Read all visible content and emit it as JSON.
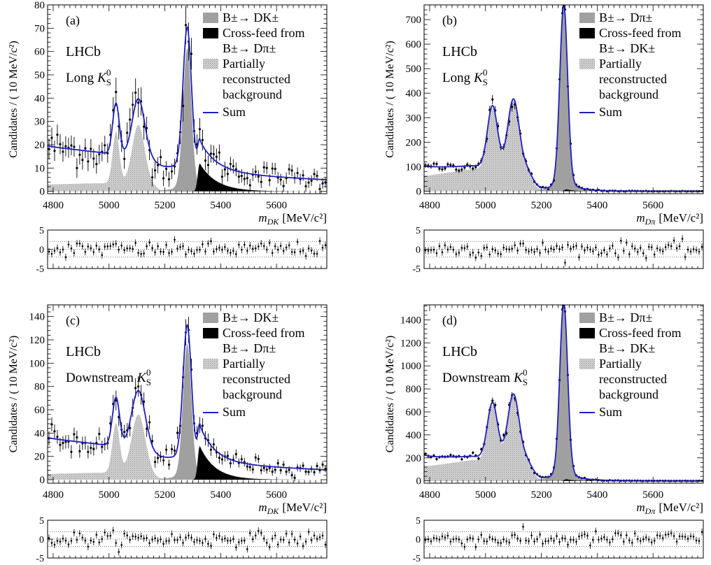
{
  "chart_data": [
    {
      "type": "line",
      "panel_label": "(a)",
      "experiment": "LHCb",
      "sample": "Long",
      "ylabel": "Candidates / ( 10 MeV/c²)",
      "xlabel_var": "m",
      "xlabel_sub": "DK",
      "xlabel_unit": "[MeV/c²]",
      "xlim": [
        4780,
        5780
      ],
      "ylim": [
        -1,
        80
      ],
      "xticks": [
        4800,
        5000,
        5200,
        5400,
        5600
      ],
      "yticks": [
        0,
        10,
        20,
        30,
        40,
        50,
        60,
        70,
        80
      ],
      "legend": [
        {
          "label": "B±→ DK±",
          "kind": "gray"
        },
        {
          "label": "Cross-feed from",
          "label2": "B±→ Dπ±",
          "kind": "black"
        },
        {
          "label": "Partially",
          "label2": "reconstructed",
          "label3": "background",
          "kind": "hatch"
        },
        {
          "label": "Sum",
          "kind": "line"
        }
      ],
      "components": {
        "signal": {
          "mu": 5280,
          "sigma": 15,
          "height": 58
        },
        "crossfeed": {
          "peak_x": 5325,
          "height": 12,
          "rise": 10,
          "decay": 60
        },
        "partial_bg": {
          "level": 3.5,
          "peaks": [
            [
              5025,
              22,
              12
            ],
            [
              5105,
              25,
              22
            ]
          ],
          "low_level_x": 4800,
          "low_level_y": 3.0
        },
        "combinatorial": {
          "a": 16.5,
          "slope": 0.0012
        },
        "sum_color": "#1f1fbf"
      },
      "residuals": {
        "ylim": [
          -5,
          5
        ],
        "yticks": [
          -5,
          0,
          5
        ],
        "bands": [
          -2,
          2
        ]
      }
    },
    {
      "type": "line",
      "panel_label": "(b)",
      "experiment": "LHCb",
      "sample": "Long",
      "ylabel": "Candidates / ( 10 MeV/c²)",
      "xlabel_var": "m",
      "xlabel_sub": "Dπ",
      "xlabel_unit": "[MeV/c²]",
      "xlim": [
        4780,
        5780
      ],
      "ylim": [
        -10,
        760
      ],
      "xticks": [
        4800,
        5000,
        5200,
        5400,
        5600
      ],
      "yticks": [
        0,
        100,
        200,
        300,
        400,
        500,
        600,
        700
      ],
      "legend": [
        {
          "label": "B±→ Dπ±",
          "kind": "gray"
        },
        {
          "label": "Cross-feed from",
          "label2": "B±→ DK±",
          "kind": "black"
        },
        {
          "label": "Partially",
          "label2": "reconstructed",
          "label3": "background",
          "kind": "hatch"
        },
        {
          "label": "Sum",
          "kind": "line"
        }
      ],
      "components": {
        "signal": {
          "mu": 5280,
          "sigma": 14,
          "height": 715
        },
        "crossfeed": {
          "peak_x": 5290,
          "height": 8,
          "rise": 10,
          "decay": 25
        },
        "partial_bg": {
          "level": 90,
          "peaks": [
            [
              5025,
              250,
              18
            ],
            [
              5100,
              280,
              20
            ]
          ],
          "low_level_x": 4800,
          "low_level_y": 65
        },
        "combinatorial": {
          "a": 40,
          "slope": 0.006
        },
        "sum_color": "#1f1fbf"
      },
      "residuals": {
        "ylim": [
          -5,
          5
        ],
        "yticks": [
          -5,
          0,
          5
        ],
        "bands": [
          -2,
          2
        ]
      }
    },
    {
      "type": "line",
      "panel_label": "(c)",
      "experiment": "LHCb",
      "sample": "Downstream",
      "ylabel": "Candidates / ( 10 MeV/c²)",
      "xlabel_var": "m",
      "xlabel_sub": "DK",
      "xlabel_unit": "[MeV/c²]",
      "xlim": [
        4780,
        5780
      ],
      "ylim": [
        -3,
        150
      ],
      "xticks": [
        4800,
        5000,
        5200,
        5400,
        5600
      ],
      "yticks": [
        0,
        20,
        40,
        60,
        80,
        100,
        120,
        140
      ],
      "legend": [
        {
          "label": "B±→ DK±",
          "kind": "gray"
        },
        {
          "label": "Cross-feed from",
          "label2": "B±→ Dπ±",
          "kind": "black"
        },
        {
          "label": "Partially",
          "label2": "reconstructed",
          "label3": "background",
          "kind": "hatch"
        },
        {
          "label": "Sum",
          "kind": "line"
        }
      ],
      "components": {
        "signal": {
          "mu": 5280,
          "sigma": 15,
          "height": 110
        },
        "crossfeed": {
          "peak_x": 5325,
          "height": 29,
          "rise": 10,
          "decay": 55
        },
        "partial_bg": {
          "level": 6,
          "peaks": [
            [
              5025,
              42,
              13
            ],
            [
              5105,
              50,
              24
            ]
          ],
          "low_level_x": 4800,
          "low_level_y": 5
        },
        "combinatorial": {
          "a": 31,
          "slope": 0.0013
        },
        "sum_color": "#1f1fbf"
      },
      "residuals": {
        "ylim": [
          -5,
          5
        ],
        "yticks": [
          -5,
          0,
          5
        ],
        "bands": [
          -2,
          2
        ]
      }
    },
    {
      "type": "line",
      "panel_label": "(d)",
      "experiment": "LHCb",
      "sample": "Downstream",
      "ylabel": "Candidates / ( 10 MeV/c²)",
      "xlabel_var": "m",
      "xlabel_sub": "Dπ",
      "xlabel_unit": "[MeV/c²]",
      "xlim": [
        4780,
        5780
      ],
      "ylim": [
        -20,
        1530
      ],
      "xticks": [
        4800,
        5000,
        5200,
        5400,
        5600
      ],
      "yticks": [
        0,
        200,
        400,
        600,
        800,
        1000,
        1200,
        1400
      ],
      "legend": [
        {
          "label": "B±→ Dπ±",
          "kind": "gray"
        },
        {
          "label": "Cross-feed from",
          "label2": "B±→ DK±",
          "kind": "black"
        },
        {
          "label": "Partially",
          "label2": "reconstructed",
          "label3": "background",
          "kind": "hatch"
        },
        {
          "label": "Sum",
          "kind": "line"
        }
      ],
      "components": {
        "signal": {
          "mu": 5280,
          "sigma": 14,
          "height": 1460
        },
        "crossfeed": {
          "peak_x": 5290,
          "height": 15,
          "rise": 10,
          "decay": 25
        },
        "partial_bg": {
          "level": 180,
          "peaks": [
            [
              5025,
              480,
              18
            ],
            [
              5100,
              560,
              20
            ]
          ],
          "low_level_x": 4800,
          "low_level_y": 130
        },
        "combinatorial": {
          "a": 95,
          "slope": 0.006
        },
        "sum_color": "#1f1fbf"
      },
      "residuals": {
        "ylim": [
          -5,
          5
        ],
        "yticks": [
          -5,
          0,
          5
        ],
        "bands": [
          -2,
          2
        ]
      }
    }
  ]
}
